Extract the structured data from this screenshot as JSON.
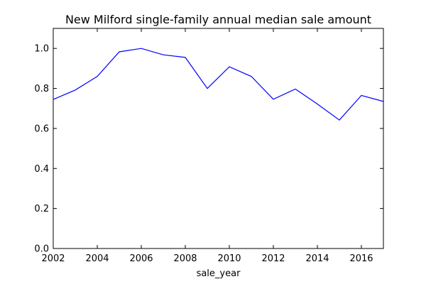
{
  "chart_data": {
    "type": "line",
    "title": "New Milford single-family annual median sale amount",
    "xlabel": "sale_year",
    "ylabel": "",
    "xlim": [
      2002,
      2017
    ],
    "ylim": [
      0.0,
      1.1
    ],
    "x_ticks": [
      2002,
      2004,
      2006,
      2008,
      2010,
      2012,
      2014,
      2016
    ],
    "x_tick_labels": [
      "2002",
      "2004",
      "2006",
      "2008",
      "2010",
      "2012",
      "2014",
      "2016"
    ],
    "y_ticks": [
      0.0,
      0.2,
      0.4,
      0.6,
      0.8,
      1.0
    ],
    "y_tick_labels": [
      "0.0",
      "0.2",
      "0.4",
      "0.6",
      "0.8",
      "1.0"
    ],
    "grid": false,
    "legend": false,
    "series": [
      {
        "color": "#0000ff",
        "x": [
          2002,
          2003,
          2004,
          2005,
          2006,
          2007,
          2008,
          2009,
          2010,
          2011,
          2012,
          2013,
          2014,
          2015,
          2016,
          2017
        ],
        "y": [
          0.745,
          0.792,
          0.86,
          0.983,
          1.0,
          0.968,
          0.955,
          0.8,
          0.908,
          0.86,
          0.746,
          0.797,
          0.722,
          0.642,
          0.765,
          0.735
        ]
      }
    ]
  }
}
